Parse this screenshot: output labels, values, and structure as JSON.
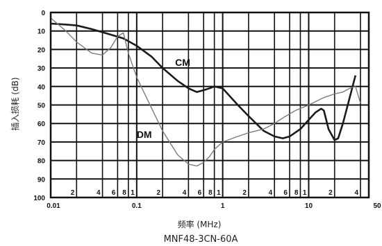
{
  "chart_data": {
    "type": "line",
    "title": "",
    "xlabel": "频率 (MHz)",
    "ylabel": "插入损耗 (dB)",
    "caption": "MNF48-3CN-60A",
    "x_scale": "log",
    "xlim": [
      0.01,
      50
    ],
    "ylim": [
      0,
      100
    ],
    "y_inverted": true,
    "grid": true,
    "x_major_tick_labels": [
      "0.01",
      "0.1",
      "1",
      "10",
      "50"
    ],
    "x_minor_tick_labels": [
      "2",
      "4",
      "6",
      "8",
      "1",
      "2",
      "4",
      "6",
      "8",
      "1",
      "2",
      "4",
      "6",
      "8",
      "1",
      "2",
      "4"
    ],
    "y_tick_labels": [
      "0",
      "10",
      "20",
      "30",
      "40",
      "50",
      "60",
      "70",
      "80",
      "90",
      "100"
    ],
    "series": [
      {
        "name": "CM",
        "color": "#1a1a1a",
        "x": [
          0.01,
          0.015,
          0.02,
          0.03,
          0.05,
          0.07,
          0.1,
          0.15,
          0.2,
          0.3,
          0.4,
          0.5,
          0.6,
          0.7,
          0.8,
          1.0,
          1.5,
          2.0,
          3.0,
          4.0,
          5.0,
          6.0,
          8.0,
          10.0,
          12.0,
          14.0,
          15.0,
          17.0,
          20.0,
          22.0,
          25.0,
          30.0,
          35.0
        ],
        "y": [
          6,
          6.5,
          7,
          9,
          12,
          14,
          18,
          24,
          30,
          37,
          41,
          43,
          42,
          41,
          40,
          41,
          50,
          56,
          64,
          67,
          68,
          67,
          63,
          58,
          54,
          52,
          53,
          63,
          69,
          68,
          60,
          46,
          34
        ]
      },
      {
        "name": "DM",
        "color": "#7a7a7a",
        "x": [
          0.01,
          0.015,
          0.02,
          0.03,
          0.04,
          0.05,
          0.06,
          0.07,
          0.08,
          0.1,
          0.15,
          0.2,
          0.3,
          0.4,
          0.5,
          0.6,
          0.7,
          0.8,
          1.0,
          1.5,
          2.0,
          3.0,
          4.0,
          5.0,
          7.0,
          10.0,
          15.0,
          20.0,
          25.0,
          30.0,
          35.0,
          40.0
        ],
        "y": [
          3,
          10,
          16,
          22,
          23,
          19,
          13,
          11,
          22,
          35,
          52,
          64,
          77,
          82,
          83,
          81,
          78,
          74,
          70,
          67,
          65,
          63,
          60,
          57,
          53,
          50,
          46,
          44,
          43,
          41,
          40,
          49
        ]
      }
    ],
    "annotations": [
      {
        "text": "CM",
        "x": 0.28,
        "y": 27
      },
      {
        "text": "DM",
        "x": 0.1,
        "y": 66
      }
    ]
  }
}
